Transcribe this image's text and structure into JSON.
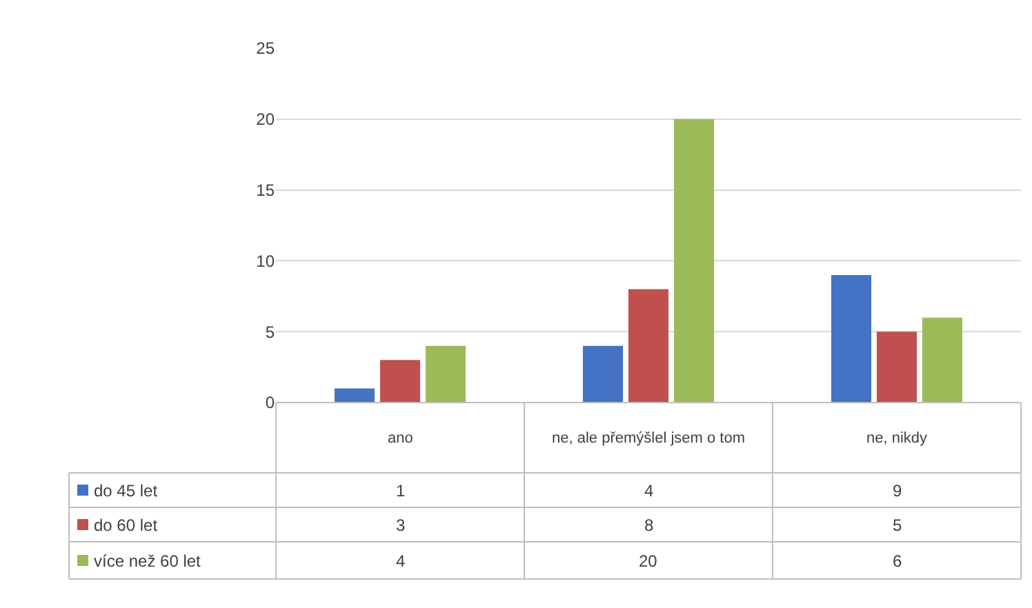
{
  "chart_data": {
    "type": "bar",
    "categories": [
      "ano",
      "ne, ale přemýšlel jsem o tom",
      "ne, nikdy"
    ],
    "series": [
      {
        "name": "do 45 let",
        "color": "#4472c4",
        "values": [
          1,
          4,
          9
        ]
      },
      {
        "name": "do 60 let",
        "color": "#c0504d",
        "values": [
          3,
          8,
          5
        ]
      },
      {
        "name": "více než 60 let",
        "color": "#9bbb59",
        "values": [
          4,
          20,
          6
        ]
      }
    ],
    "ylim": [
      0,
      25
    ],
    "yticks": [
      0,
      5,
      10,
      15,
      20,
      25
    ],
    "grid": "y",
    "data_labels": true,
    "legend": "bottom left"
  }
}
